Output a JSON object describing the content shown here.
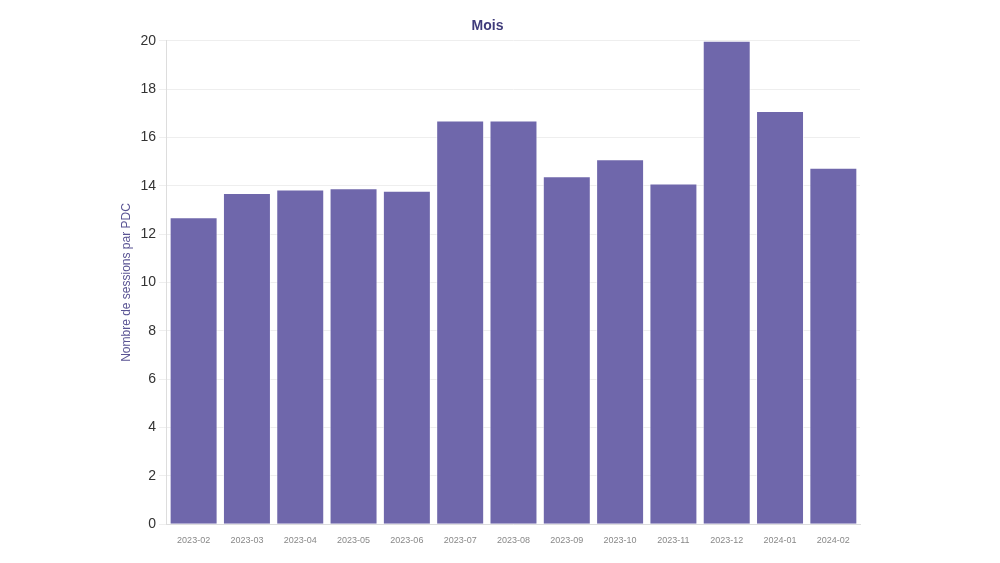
{
  "chart_data": {
    "type": "bar",
    "title": "Mois",
    "y_label": "Nombre de sessions par PDC",
    "categories": [
      "2023-02",
      "2023-03",
      "2023-04",
      "2023-05",
      "2023-06",
      "2023-07",
      "2023-08",
      "2023-09",
      "2023-10",
      "2023-11",
      "2023-12",
      "2024-01",
      "2024-02"
    ],
    "values": [
      12.7,
      13.7,
      13.85,
      13.9,
      13.8,
      16.7,
      16.7,
      14.4,
      15.1,
      14.1,
      20.0,
      17.1,
      14.75
    ],
    "color": "#6f67ab",
    "ylim": [
      0,
      20
    ],
    "yticks": [
      0,
      2,
      4,
      6,
      8,
      10,
      12,
      14,
      16,
      18,
      20
    ],
    "grid": true
  }
}
